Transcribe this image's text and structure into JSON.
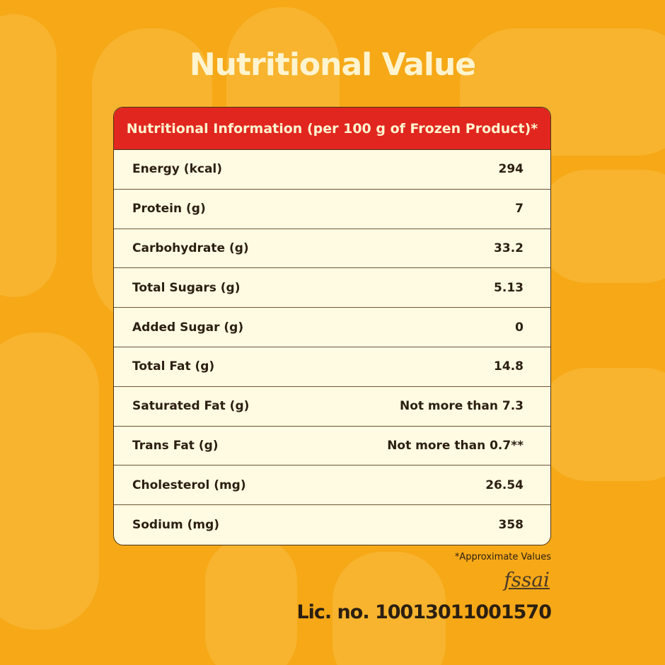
{
  "title": "Nutritional Value",
  "table": {
    "header": "Nutritional Information (per 100 g of Frozen Product)*",
    "rows": [
      [
        "Energy (kcal)",
        "294"
      ],
      [
        "Protein (g)",
        "7"
      ],
      [
        "Carbohydrate (g)",
        "33.2"
      ],
      [
        "Total Sugars (g)",
        "5.13"
      ],
      [
        "Added Sugar (g)",
        "0"
      ],
      [
        "Total Fat (g)",
        "14.8"
      ],
      [
        "Saturated Fat (g)",
        "Not more than 7.3"
      ],
      [
        "Trans Fat (g)",
        "Not more than 0.7**"
      ],
      [
        "Cholesterol (mg)",
        "26.54"
      ],
      [
        "Sodium (mg)",
        "358"
      ]
    ]
  },
  "footnote": "*Approximate Values",
  "logo": "fssai",
  "license": "Lic. no. 10013011001570"
}
